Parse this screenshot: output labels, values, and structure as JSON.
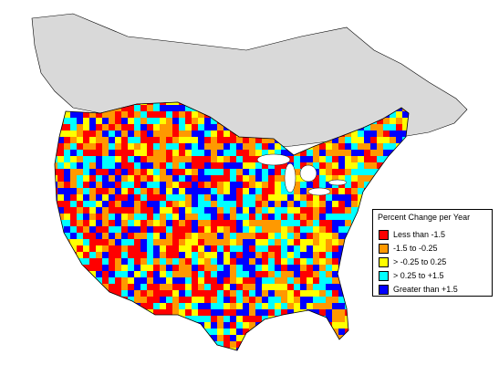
{
  "map": {
    "colors": {
      "background": "#ffffff",
      "no_data": "#d9d9d9",
      "outline": "#000000"
    }
  },
  "legend": {
    "title": "Percent Change per Year",
    "items": [
      {
        "label": "Less than -1.5",
        "color": "#ff0000"
      },
      {
        "label": "-1.5 to -0.25",
        "color": "#ff9900"
      },
      {
        "label": "> -0.25 to 0.25",
        "color": "#ffff00"
      },
      {
        "label": "> 0.25 to +1.5",
        "color": "#00ffff"
      },
      {
        "label": "Greater than +1.5",
        "color": "#0000ff"
      }
    ]
  }
}
